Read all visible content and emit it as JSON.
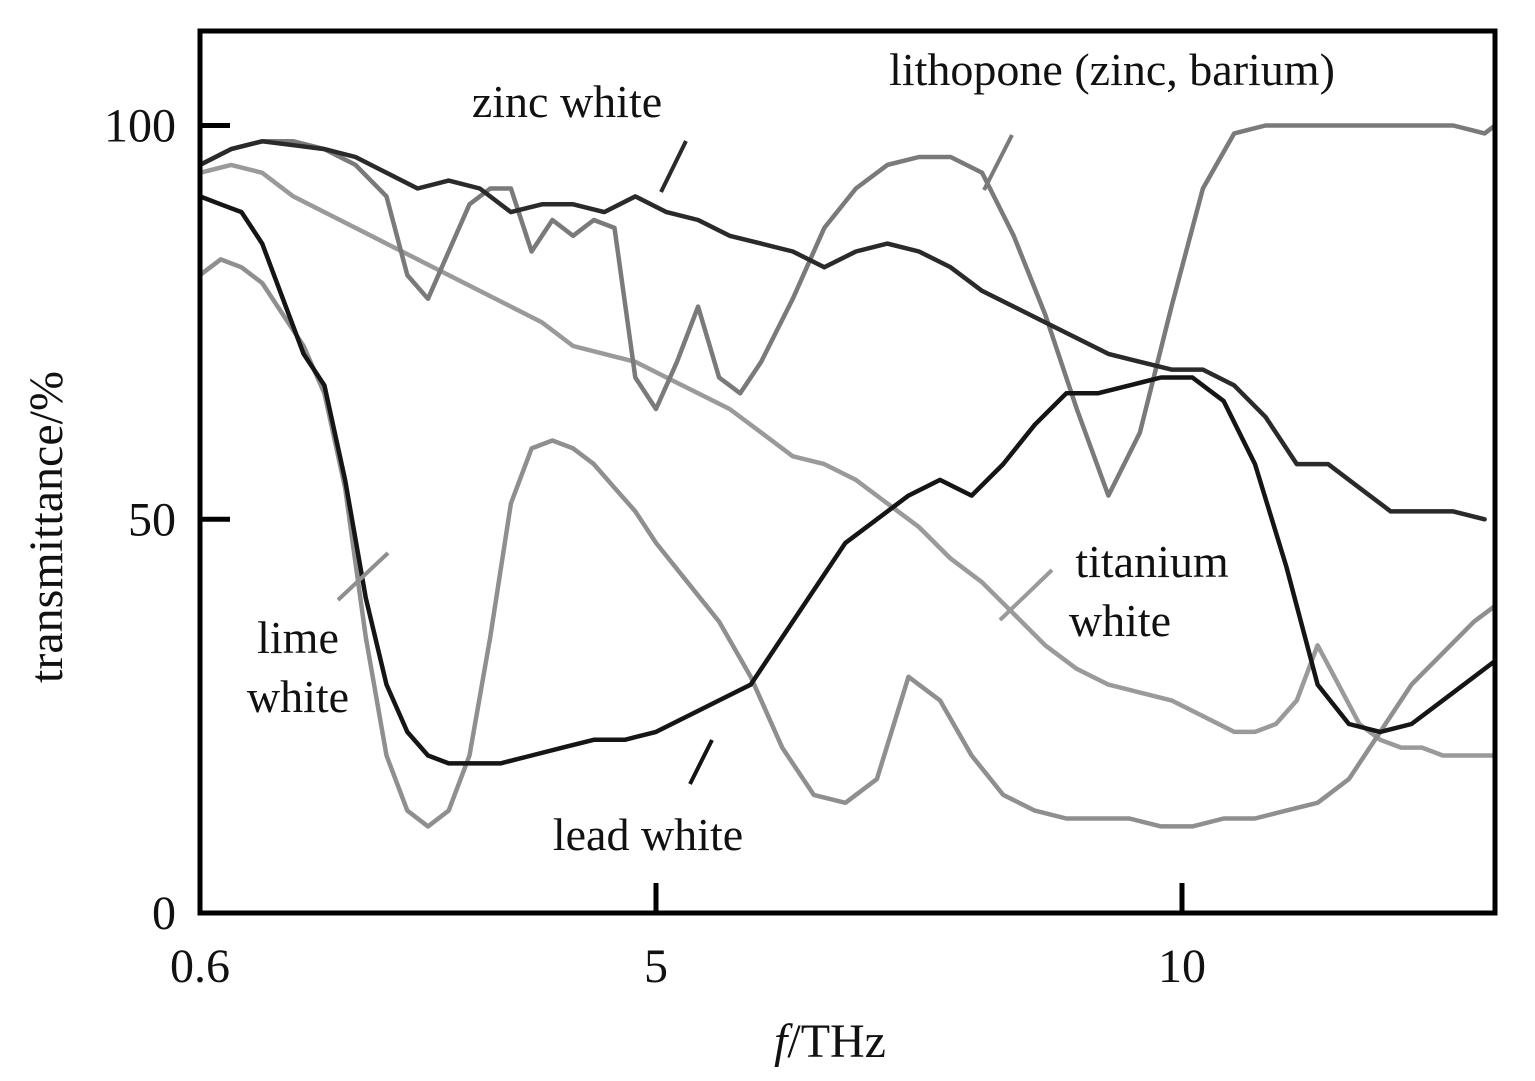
{
  "chart_data": {
    "type": "line",
    "xlabel_italic": "f",
    "xlabel_rest": "/THz",
    "ylabel": "transmittance/%",
    "xlim": [
      0.6,
      13.0
    ],
    "ylim": [
      0,
      112
    ],
    "x_ticks": [
      0.6,
      5,
      10
    ],
    "x_tick_labels": [
      "0.6",
      "5",
      "10"
    ],
    "y_ticks": [
      0,
      50,
      100
    ],
    "y_tick_labels": [
      "0",
      "50",
      "100"
    ],
    "grid": false,
    "colors": {
      "zinc_white": "#2a2a2a",
      "lead_white": "#151515",
      "lithopone": "#7a7a7a",
      "lime_white": "#8f8f8f",
      "titanium_white": "#9a9a9a"
    },
    "series": [
      {
        "key": "zinc_white",
        "name": "zinc white",
        "x": [
          0.6,
          0.9,
          1.2,
          1.5,
          1.8,
          2.1,
          2.4,
          2.7,
          3.0,
          3.3,
          3.6,
          3.9,
          4.2,
          4.5,
          4.8,
          5.1,
          5.4,
          5.7,
          6.0,
          6.3,
          6.6,
          6.9,
          7.2,
          7.5,
          7.8,
          8.1,
          8.4,
          8.7,
          9.0,
          9.3,
          9.6,
          9.9,
          10.2,
          10.5,
          10.8,
          11.1,
          11.4,
          11.7,
          12.0,
          12.3,
          12.6,
          12.9
        ],
        "y": [
          95,
          97,
          98,
          97.5,
          97,
          96,
          94,
          92,
          93,
          92,
          89,
          90,
          90,
          89,
          91,
          89,
          88,
          86,
          85,
          84,
          82,
          84,
          85,
          84,
          82,
          79,
          77,
          75,
          73,
          71,
          70,
          69,
          69,
          67,
          63,
          57,
          57,
          54,
          51,
          51,
          51,
          50
        ]
      },
      {
        "key": "lead_white",
        "name": "lead white",
        "x": [
          0.6,
          0.8,
          1.0,
          1.2,
          1.4,
          1.6,
          1.8,
          2.0,
          2.2,
          2.4,
          2.6,
          2.8,
          3.0,
          3.2,
          3.5,
          3.8,
          4.1,
          4.4,
          4.7,
          5.0,
          5.3,
          5.6,
          5.9,
          6.2,
          6.5,
          6.8,
          7.1,
          7.4,
          7.7,
          8.0,
          8.3,
          8.6,
          8.9,
          9.2,
          9.5,
          9.8,
          10.1,
          10.4,
          10.7,
          11.0,
          11.3,
          11.6,
          11.9,
          12.2,
          12.5,
          12.8,
          13.0
        ],
        "y": [
          91,
          90,
          89,
          85,
          78,
          71,
          67,
          55,
          40,
          29,
          23,
          20,
          19,
          19,
          19,
          20,
          21,
          22,
          22,
          23,
          25,
          27,
          29,
          35,
          41,
          47,
          50,
          53,
          55,
          53,
          57,
          62,
          66,
          66,
          67,
          68,
          68,
          65,
          57,
          44,
          29,
          24,
          23,
          24,
          27,
          30,
          32
        ]
      },
      {
        "key": "lithopone",
        "name": "lithopone (zinc, barium)",
        "x": [
          0.6,
          0.9,
          1.2,
          1.5,
          1.8,
          2.1,
          2.4,
          2.6,
          2.8,
          3.0,
          3.2,
          3.4,
          3.6,
          3.8,
          4.0,
          4.2,
          4.4,
          4.6,
          4.8,
          5.0,
          5.2,
          5.4,
          5.6,
          5.8,
          6.0,
          6.3,
          6.6,
          6.9,
          7.2,
          7.5,
          7.8,
          8.1,
          8.4,
          8.7,
          9.0,
          9.3,
          9.6,
          9.9,
          10.2,
          10.5,
          10.8,
          11.1,
          11.4,
          11.7,
          12.0,
          12.3,
          12.6,
          12.9,
          13.0
        ],
        "y": [
          95,
          97,
          98,
          98,
          97,
          95,
          91,
          81,
          78,
          84,
          90,
          92,
          92,
          84,
          88,
          86,
          88,
          87,
          68,
          64,
          70,
          77,
          68,
          66,
          70,
          78,
          87,
          92,
          95,
          96,
          96,
          94,
          86,
          76,
          64,
          53,
          61,
          77,
          92,
          99,
          100,
          100,
          100,
          100,
          100,
          100,
          100,
          99,
          100
        ]
      },
      {
        "key": "lime_white",
        "name": "lime white",
        "x": [
          0.6,
          0.8,
          1.0,
          1.2,
          1.4,
          1.6,
          1.8,
          2.0,
          2.2,
          2.4,
          2.6,
          2.8,
          3.0,
          3.2,
          3.4,
          3.6,
          3.8,
          4.0,
          4.2,
          4.4,
          4.6,
          4.8,
          5.0,
          5.3,
          5.6,
          5.9,
          6.2,
          6.5,
          6.8,
          7.1,
          7.4,
          7.7,
          8.0,
          8.3,
          8.6,
          8.9,
          9.2,
          9.5,
          9.8,
          10.1,
          10.4,
          10.7,
          11.0,
          11.3,
          11.6,
          11.9,
          12.2,
          12.5,
          12.8,
          13.0
        ],
        "y": [
          81,
          83,
          82,
          80,
          76,
          72,
          66,
          54,
          35,
          20,
          13,
          11,
          13,
          20,
          35,
          52,
          59,
          60,
          59,
          57,
          54,
          51,
          47,
          42,
          37,
          30,
          21,
          15,
          14,
          17,
          30,
          27,
          20,
          15,
          13,
          12,
          12,
          12,
          11,
          11,
          12,
          12,
          13,
          14,
          17,
          23,
          29,
          33,
          37,
          39
        ]
      },
      {
        "key": "titanium_white",
        "name": "titanium white",
        "x": [
          0.6,
          0.9,
          1.2,
          1.5,
          1.8,
          2.1,
          2.4,
          2.7,
          3.0,
          3.3,
          3.6,
          3.9,
          4.2,
          4.5,
          4.8,
          5.1,
          5.4,
          5.7,
          6.0,
          6.3,
          6.6,
          6.9,
          7.2,
          7.5,
          7.8,
          8.1,
          8.4,
          8.7,
          9.0,
          9.3,
          9.6,
          9.9,
          10.2,
          10.5,
          10.7,
          10.9,
          11.1,
          11.3,
          11.5,
          11.7,
          11.9,
          12.1,
          12.3,
          12.5,
          12.7,
          12.9,
          13.0
        ],
        "y": [
          94,
          95,
          94,
          91,
          89,
          87,
          85,
          83,
          81,
          79,
          77,
          75,
          72,
          71,
          70,
          68,
          66,
          64,
          61,
          58,
          57,
          55,
          52,
          49,
          45,
          42,
          38,
          34,
          31,
          29,
          28,
          27,
          25,
          23,
          23,
          24,
          27,
          34,
          29,
          24,
          22,
          21,
          21,
          20,
          20,
          20,
          20
        ]
      }
    ],
    "annotations": [
      {
        "series": "zinc_white",
        "text": "zinc white"
      },
      {
        "series": "lithopone",
        "text": "lithopone (zinc, barium)"
      },
      {
        "series": "titanium_white",
        "text_lines": [
          "titanium",
          "white"
        ]
      },
      {
        "series": "lime_white",
        "text_lines": [
          "lime",
          "white"
        ]
      },
      {
        "series": "lead_white",
        "text": "lead white"
      }
    ]
  }
}
